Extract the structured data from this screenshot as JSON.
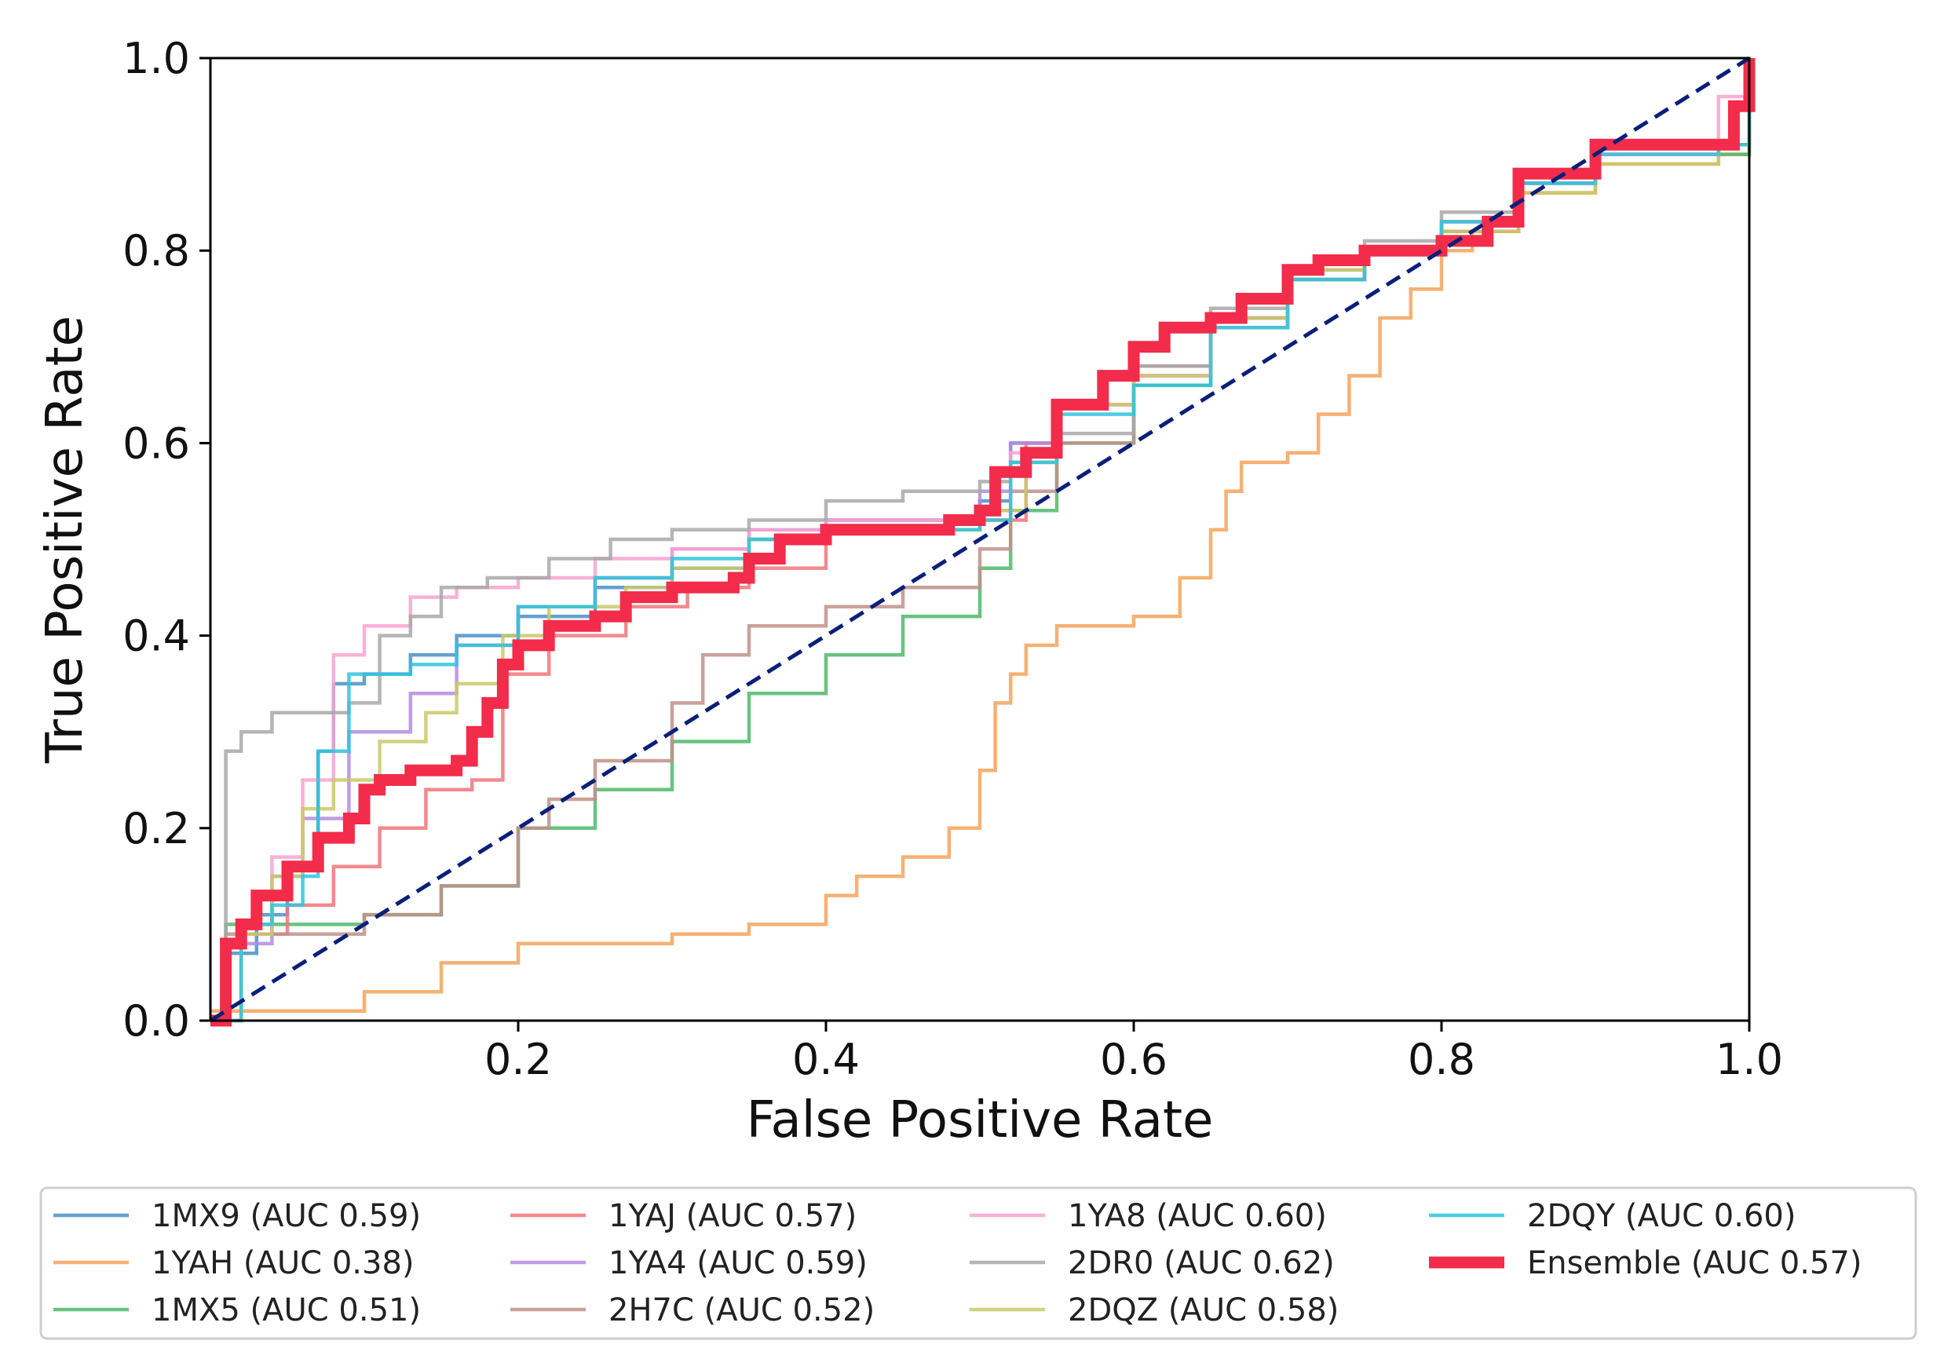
{
  "chart_data": {
    "type": "line",
    "title": "",
    "xlabel": "False Positive Rate",
    "ylabel": "True Positive Rate",
    "xlim": [
      0.0,
      1.0
    ],
    "ylim": [
      0.0,
      1.0
    ],
    "xticks": [
      "0.2",
      "0.4",
      "0.6",
      "0.8",
      "1.0"
    ],
    "xtick_values": [
      0.2,
      0.4,
      0.6,
      0.8,
      1.0
    ],
    "yticks": [
      "0.0",
      "0.2",
      "0.4",
      "0.6",
      "0.8",
      "1.0"
    ],
    "ytick_values": [
      0.0,
      0.2,
      0.4,
      0.6,
      0.8,
      1.0
    ],
    "grid": false,
    "legend_position": "bottom",
    "chance_line": {
      "color": "#0a1f7a",
      "style": "dashed",
      "x": [
        0.0,
        1.0
      ],
      "y": [
        0.0,
        1.0
      ]
    },
    "series": [
      {
        "name": "1MX9 (AUC 0.59)",
        "color": "#4a90c4",
        "emphasis": false,
        "x": [
          0.0,
          0.01,
          0.03,
          0.05,
          0.07,
          0.08,
          0.1,
          0.13,
          0.16,
          0.2,
          0.25,
          0.3,
          0.35,
          0.4,
          0.45,
          0.5,
          0.52,
          0.55,
          0.6,
          0.65,
          0.7,
          0.75,
          0.8,
          0.85,
          0.9,
          0.98,
          1.0
        ],
        "y": [
          0.0,
          0.07,
          0.11,
          0.16,
          0.28,
          0.35,
          0.36,
          0.38,
          0.4,
          0.42,
          0.45,
          0.47,
          0.5,
          0.52,
          0.52,
          0.54,
          0.6,
          0.64,
          0.67,
          0.72,
          0.78,
          0.8,
          0.82,
          0.88,
          0.91,
          0.91,
          0.95
        ]
      },
      {
        "name": "1YAH (AUC 0.38)",
        "color": "#f5a35a",
        "emphasis": false,
        "x": [
          0.0,
          0.08,
          0.1,
          0.15,
          0.2,
          0.3,
          0.35,
          0.4,
          0.42,
          0.45,
          0.48,
          0.5,
          0.51,
          0.52,
          0.53,
          0.55,
          0.6,
          0.63,
          0.65,
          0.66,
          0.67,
          0.7,
          0.72,
          0.74,
          0.76,
          0.78,
          0.8,
          0.82,
          0.85,
          0.9,
          0.98,
          1.0
        ],
        "y": [
          0.01,
          0.01,
          0.03,
          0.06,
          0.08,
          0.09,
          0.1,
          0.13,
          0.15,
          0.17,
          0.2,
          0.26,
          0.33,
          0.36,
          0.39,
          0.41,
          0.42,
          0.46,
          0.51,
          0.55,
          0.58,
          0.59,
          0.63,
          0.67,
          0.73,
          0.76,
          0.8,
          0.82,
          0.86,
          0.89,
          0.9,
          0.95
        ]
      },
      {
        "name": "1MX5 (AUC 0.51)",
        "color": "#4fb86b",
        "emphasis": false,
        "x": [
          0.0,
          0.01,
          0.05,
          0.1,
          0.15,
          0.2,
          0.25,
          0.3,
          0.35,
          0.4,
          0.45,
          0.5,
          0.52,
          0.55,
          0.6,
          0.65,
          0.7,
          0.75,
          0.8,
          0.85,
          0.9,
          0.98,
          1.0
        ],
        "y": [
          0.0,
          0.1,
          0.1,
          0.11,
          0.14,
          0.2,
          0.24,
          0.29,
          0.34,
          0.38,
          0.42,
          0.47,
          0.53,
          0.6,
          0.66,
          0.72,
          0.77,
          0.8,
          0.83,
          0.87,
          0.9,
          0.9,
          0.95
        ]
      },
      {
        "name": "1YAJ (AUC 0.57)",
        "color": "#f0757a",
        "emphasis": false,
        "x": [
          0.0,
          0.02,
          0.05,
          0.08,
          0.11,
          0.14,
          0.17,
          0.19,
          0.22,
          0.27,
          0.31,
          0.35,
          0.4,
          0.45,
          0.5,
          0.53,
          0.55,
          0.6,
          0.65,
          0.7,
          0.75,
          0.8,
          0.85,
          0.9,
          0.98,
          1.0
        ],
        "y": [
          0.0,
          0.09,
          0.12,
          0.16,
          0.2,
          0.24,
          0.25,
          0.36,
          0.4,
          0.43,
          0.45,
          0.47,
          0.51,
          0.51,
          0.52,
          0.6,
          0.64,
          0.67,
          0.72,
          0.78,
          0.8,
          0.82,
          0.87,
          0.9,
          0.91,
          0.95
        ]
      },
      {
        "name": "1YA4 (AUC 0.59)",
        "color": "#b48be0",
        "emphasis": false,
        "x": [
          0.0,
          0.02,
          0.04,
          0.06,
          0.09,
          0.13,
          0.16,
          0.2,
          0.25,
          0.3,
          0.35,
          0.4,
          0.45,
          0.5,
          0.52,
          0.55,
          0.6,
          0.65,
          0.7,
          0.75,
          0.8,
          0.85,
          0.9,
          0.98,
          1.0
        ],
        "y": [
          0.0,
          0.08,
          0.15,
          0.21,
          0.3,
          0.34,
          0.39,
          0.43,
          0.46,
          0.49,
          0.51,
          0.52,
          0.52,
          0.55,
          0.6,
          0.64,
          0.67,
          0.73,
          0.78,
          0.8,
          0.83,
          0.87,
          0.9,
          0.91,
          0.95
        ]
      },
      {
        "name": "2H7C (AUC 0.52)",
        "color": "#c0908a",
        "emphasis": false,
        "x": [
          0.0,
          0.01,
          0.05,
          0.1,
          0.15,
          0.2,
          0.22,
          0.25,
          0.3,
          0.32,
          0.35,
          0.4,
          0.45,
          0.5,
          0.52,
          0.55,
          0.6,
          0.65,
          0.7,
          0.75,
          0.8,
          0.85,
          0.9,
          0.98,
          1.0
        ],
        "y": [
          0.0,
          0.09,
          0.09,
          0.11,
          0.14,
          0.2,
          0.23,
          0.27,
          0.33,
          0.38,
          0.41,
          0.43,
          0.45,
          0.49,
          0.55,
          0.6,
          0.68,
          0.73,
          0.77,
          0.8,
          0.83,
          0.88,
          0.91,
          0.91,
          0.95
        ]
      },
      {
        "name": "1YA8 (AUC 0.60)",
        "color": "#f7a3d1",
        "emphasis": false,
        "x": [
          0.0,
          0.02,
          0.04,
          0.06,
          0.08,
          0.1,
          0.13,
          0.16,
          0.2,
          0.25,
          0.3,
          0.35,
          0.4,
          0.45,
          0.5,
          0.52,
          0.55,
          0.6,
          0.65,
          0.7,
          0.75,
          0.8,
          0.85,
          0.9,
          0.98,
          1.0
        ],
        "y": [
          0.0,
          0.1,
          0.17,
          0.25,
          0.38,
          0.41,
          0.44,
          0.45,
          0.46,
          0.48,
          0.49,
          0.51,
          0.52,
          0.52,
          0.53,
          0.59,
          0.64,
          0.67,
          0.72,
          0.78,
          0.8,
          0.83,
          0.88,
          0.9,
          0.96,
          0.97
        ]
      },
      {
        "name": "2DR0 (AUC 0.62)",
        "color": "#a8a8a8",
        "emphasis": false,
        "x": [
          0.0,
          0.01,
          0.02,
          0.04,
          0.06,
          0.09,
          0.11,
          0.13,
          0.15,
          0.18,
          0.22,
          0.26,
          0.3,
          0.35,
          0.4,
          0.45,
          0.5,
          0.52,
          0.55,
          0.6,
          0.65,
          0.7,
          0.75,
          0.8,
          0.85,
          0.9,
          0.98,
          1.0
        ],
        "y": [
          0.0,
          0.28,
          0.3,
          0.32,
          0.32,
          0.33,
          0.4,
          0.42,
          0.45,
          0.46,
          0.48,
          0.5,
          0.51,
          0.52,
          0.54,
          0.55,
          0.56,
          0.58,
          0.61,
          0.68,
          0.74,
          0.78,
          0.81,
          0.84,
          0.88,
          0.91,
          0.91,
          0.95
        ]
      },
      {
        "name": "2DQZ (AUC 0.58)",
        "color": "#c9c96a",
        "emphasis": false,
        "x": [
          0.0,
          0.02,
          0.04,
          0.06,
          0.08,
          0.11,
          0.14,
          0.16,
          0.19,
          0.22,
          0.27,
          0.3,
          0.35,
          0.4,
          0.45,
          0.5,
          0.53,
          0.55,
          0.6,
          0.65,
          0.7,
          0.75,
          0.8,
          0.85,
          0.9,
          0.98,
          1.0
        ],
        "y": [
          0.0,
          0.09,
          0.15,
          0.22,
          0.25,
          0.29,
          0.32,
          0.35,
          0.4,
          0.43,
          0.45,
          0.47,
          0.5,
          0.51,
          0.51,
          0.53,
          0.58,
          0.64,
          0.67,
          0.73,
          0.78,
          0.8,
          0.82,
          0.86,
          0.89,
          0.91,
          0.95
        ]
      },
      {
        "name": "2DQY (AUC 0.60)",
        "color": "#2ec4dc",
        "emphasis": false,
        "x": [
          0.0,
          0.02,
          0.04,
          0.06,
          0.07,
          0.09,
          0.13,
          0.16,
          0.2,
          0.25,
          0.3,
          0.35,
          0.4,
          0.45,
          0.5,
          0.52,
          0.55,
          0.6,
          0.65,
          0.7,
          0.75,
          0.8,
          0.85,
          0.9,
          0.98,
          1.0
        ],
        "y": [
          0.0,
          0.1,
          0.12,
          0.15,
          0.28,
          0.36,
          0.37,
          0.39,
          0.43,
          0.46,
          0.48,
          0.5,
          0.51,
          0.51,
          0.52,
          0.58,
          0.63,
          0.66,
          0.72,
          0.77,
          0.8,
          0.83,
          0.87,
          0.9,
          0.91,
          0.95
        ]
      },
      {
        "name": "Ensemble (AUC 0.57)",
        "color": "#f22c4a",
        "emphasis": true,
        "x": [
          0.0,
          0.01,
          0.02,
          0.03,
          0.05,
          0.07,
          0.09,
          0.1,
          0.11,
          0.13,
          0.16,
          0.17,
          0.18,
          0.19,
          0.2,
          0.22,
          0.25,
          0.27,
          0.3,
          0.34,
          0.35,
          0.37,
          0.4,
          0.45,
          0.48,
          0.5,
          0.51,
          0.53,
          0.55,
          0.58,
          0.6,
          0.62,
          0.65,
          0.67,
          0.7,
          0.72,
          0.75,
          0.8,
          0.83,
          0.85,
          0.9,
          0.98,
          0.99,
          1.0
        ],
        "y": [
          0.0,
          0.08,
          0.1,
          0.13,
          0.16,
          0.19,
          0.21,
          0.24,
          0.25,
          0.26,
          0.27,
          0.3,
          0.33,
          0.37,
          0.39,
          0.41,
          0.42,
          0.44,
          0.45,
          0.46,
          0.48,
          0.5,
          0.51,
          0.51,
          0.52,
          0.53,
          0.57,
          0.59,
          0.64,
          0.67,
          0.7,
          0.72,
          0.73,
          0.75,
          0.78,
          0.79,
          0.8,
          0.81,
          0.83,
          0.88,
          0.91,
          0.91,
          0.95,
          1.0
        ]
      }
    ]
  }
}
